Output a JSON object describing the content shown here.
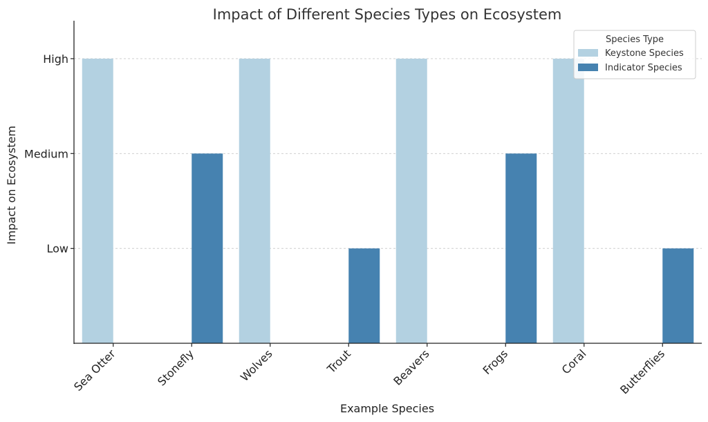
{
  "chart_data": {
    "type": "bar",
    "title": "Impact of Different Species Types on Ecosystem",
    "xlabel": "Example Species",
    "ylabel": "Impact on Ecosystem",
    "categories": [
      "Sea Otter",
      "Stonefly",
      "Wolves",
      "Trout",
      "Beavers",
      "Frogs",
      "Coral",
      "Butterflies"
    ],
    "y_ticks": [
      {
        "value": 1,
        "label": "Low"
      },
      {
        "value": 2,
        "label": "Medium"
      },
      {
        "value": 3,
        "label": "High"
      }
    ],
    "ylim": [
      0,
      3.4
    ],
    "grid": true,
    "legend": {
      "title": "Species Type",
      "placement": "top-right"
    },
    "series": [
      {
        "name": "Keystone Species",
        "color": "#b3d1e1",
        "values": [
          3,
          null,
          3,
          null,
          3,
          null,
          3,
          null
        ]
      },
      {
        "name": "Indicator Species",
        "color": "#4682b0",
        "values": [
          null,
          2,
          null,
          1,
          null,
          2,
          null,
          1
        ]
      }
    ]
  }
}
